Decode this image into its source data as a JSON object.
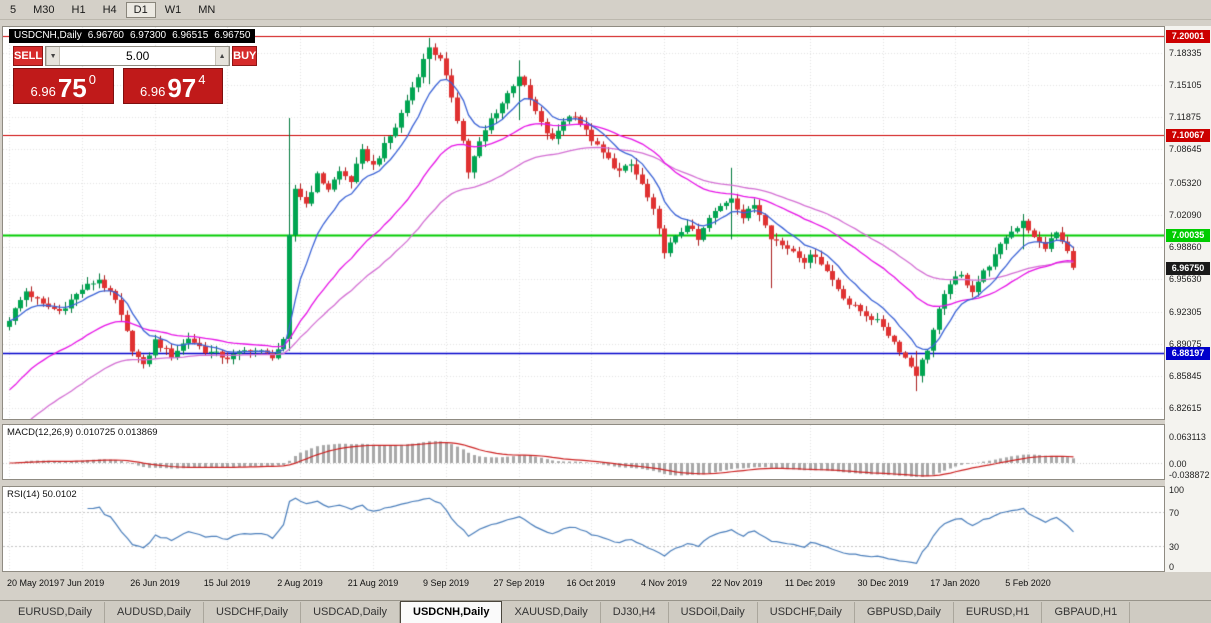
{
  "toolbar": {
    "timeframes": [
      "5",
      "M30",
      "H1",
      "H4",
      "D1",
      "W1",
      "MN"
    ],
    "active": "D1"
  },
  "symbol_header": {
    "symbol": "USDCNH,Daily",
    "open": "6.96760",
    "high": "6.97300",
    "low": "6.96515",
    "close": "6.96750"
  },
  "icons": {
    "up_arrow": "▲",
    "down_arrow": "▼"
  },
  "trade_panel": {
    "sell_label": "SELL",
    "buy_label": "BUY",
    "volume": "5.00",
    "sell_price_main": "6.96",
    "sell_price_pips": "75",
    "sell_price_point": "0",
    "buy_price_main": "6.96",
    "buy_price_pips": "97",
    "buy_price_point": "4"
  },
  "price_axis": {
    "min": 6.8155,
    "max": 7.2095,
    "ticks": [
      "7.18335",
      "7.15105",
      "7.11875",
      "7.08645",
      "7.05320",
      "7.02090",
      "6.98860",
      "6.95630",
      "6.92305",
      "6.89075",
      "6.85845",
      "6.82615"
    ],
    "levels": [
      {
        "name": "resistance-upper",
        "price": 7.20001,
        "label": "7.20001",
        "color": "#cc0000",
        "width": 1.2
      },
      {
        "name": "resistance-mid",
        "price": 7.10067,
        "label": "7.10067",
        "color": "#cc0000",
        "width": 1.2
      },
      {
        "name": "pivot-green",
        "price": 7.00035,
        "label": "7.00035",
        "color": "#00cc00",
        "width": 2
      },
      {
        "name": "support-blue",
        "price": 6.88197,
        "label": "6.88197",
        "color": "#0000cc",
        "width": 1.5
      }
    ],
    "current_price": {
      "price": 6.9675,
      "label": "6.96750",
      "color": "#1a1a1a"
    }
  },
  "indicators": {
    "macd": {
      "label": "MACD(12,26,9) 0.010725 0.013869",
      "axis": [
        "0.063113",
        "0.00",
        "-0.038872"
      ],
      "values": [
        0.010725,
        0.013869
      ]
    },
    "rsi": {
      "label": "RSI(14) 50.0102",
      "axis": [
        "100",
        "70",
        "30",
        "0"
      ],
      "levels": [
        70,
        30
      ],
      "value": 50.0102
    }
  },
  "time_axis": {
    "labels": [
      "20 May 2019",
      "7 Jun 2019",
      "26 Jun 2019",
      "15 Jul 2019",
      "2 Aug 2019",
      "21 Aug 2019",
      "9 Sep 2019",
      "27 Sep 2019",
      "16 Oct 2019",
      "4 Nov 2019",
      "22 Nov 2019",
      "11 Dec 2019",
      "30 Dec 2019",
      "17 Jan 2020",
      "5 Feb 2020"
    ],
    "label_indices": [
      0,
      13,
      26,
      39,
      52,
      65,
      78,
      91,
      104,
      117,
      130,
      143,
      156,
      169,
      182
    ]
  },
  "tabs": {
    "items": [
      "EURUSD,Daily",
      "AUDUSD,Daily",
      "USDCHF,Daily",
      "USDCAD,Daily",
      "USDCNH,Daily",
      "XAUUSD,Daily",
      "DJ30,H4",
      "USDOil,Daily",
      "USDCHF,Daily",
      "GBPUSD,Daily",
      "EURUSD,H1",
      "GBPAUD,H1"
    ],
    "active": "USDCNH,Daily"
  },
  "chart_data": {
    "type": "candlestick",
    "symbol": "USDCNH",
    "timeframe": "Daily",
    "visible_ohlc": {
      "open": 6.9676,
      "high": 6.973,
      "low": 6.96515,
      "close": 6.9675
    },
    "candle_count": 191,
    "close_keypoints": [
      [
        0,
        6.916
      ],
      [
        3,
        6.944
      ],
      [
        6,
        6.93
      ],
      [
        9,
        6.924
      ],
      [
        13,
        6.946
      ],
      [
        16,
        6.956
      ],
      [
        19,
        6.934
      ],
      [
        22,
        6.886
      ],
      [
        24,
        6.868
      ],
      [
        26,
        6.894
      ],
      [
        29,
        6.879
      ],
      [
        32,
        6.897
      ],
      [
        35,
        6.884
      ],
      [
        39,
        6.877
      ],
      [
        43,
        6.886
      ],
      [
        47,
        6.879
      ],
      [
        49,
        6.893
      ],
      [
        50,
        6.998
      ],
      [
        51,
        7.047
      ],
      [
        53,
        7.032
      ],
      [
        55,
        7.06
      ],
      [
        57,
        7.047
      ],
      [
        59,
        7.064
      ],
      [
        61,
        7.055
      ],
      [
        63,
        7.084
      ],
      [
        65,
        7.07
      ],
      [
        67,
        7.09
      ],
      [
        69,
        7.109
      ],
      [
        71,
        7.136
      ],
      [
        73,
        7.162
      ],
      [
        75,
        7.19
      ],
      [
        77,
        7.176
      ],
      [
        79,
        7.14
      ],
      [
        81,
        7.095
      ],
      [
        82,
        7.064
      ],
      [
        84,
        7.093
      ],
      [
        86,
        7.117
      ],
      [
        88,
        7.133
      ],
      [
        90,
        7.152
      ],
      [
        91,
        7.161
      ],
      [
        93,
        7.136
      ],
      [
        95,
        7.112
      ],
      [
        97,
        7.095
      ],
      [
        99,
        7.116
      ],
      [
        101,
        7.122
      ],
      [
        103,
        7.104
      ],
      [
        105,
        7.089
      ],
      [
        107,
        7.076
      ],
      [
        109,
        7.064
      ],
      [
        111,
        7.071
      ],
      [
        113,
        7.051
      ],
      [
        115,
        7.024
      ],
      [
        117,
        6.985
      ],
      [
        119,
        6.997
      ],
      [
        121,
        7.012
      ],
      [
        123,
        6.995
      ],
      [
        125,
        7.017
      ],
      [
        127,
        7.029
      ],
      [
        129,
        7.039
      ],
      [
        131,
        7.018
      ],
      [
        133,
        7.031
      ],
      [
        135,
        7.013
      ],
      [
        136,
        6.999
      ],
      [
        138,
        6.99
      ],
      [
        140,
        6.985
      ],
      [
        142,
        6.975
      ],
      [
        144,
        6.981
      ],
      [
        146,
        6.964
      ],
      [
        148,
        6.947
      ],
      [
        150,
        6.931
      ],
      [
        152,
        6.924
      ],
      [
        154,
        6.917
      ],
      [
        156,
        6.909
      ],
      [
        158,
        6.893
      ],
      [
        160,
        6.877
      ],
      [
        162,
        6.861
      ],
      [
        164,
        6.886
      ],
      [
        166,
        6.924
      ],
      [
        168,
        6.953
      ],
      [
        170,
        6.959
      ],
      [
        172,
        6.945
      ],
      [
        174,
        6.963
      ],
      [
        176,
        6.979
      ],
      [
        178,
        6.999
      ],
      [
        180,
        7.009
      ],
      [
        181,
        7.016
      ],
      [
        183,
        6.997
      ],
      [
        185,
        6.988
      ],
      [
        187,
        7.003
      ],
      [
        189,
        6.983
      ],
      [
        190,
        6.9675
      ]
    ],
    "wick_overrides": [
      [
        50,
        7.118,
        6.884
      ],
      [
        75,
        7.1985,
        7.152
      ],
      [
        91,
        7.176,
        7.116
      ],
      [
        129,
        7.068,
        6.996
      ],
      [
        136,
        7.002,
        6.947
      ],
      [
        162,
        6.884,
        6.8435
      ],
      [
        181,
        7.0215,
        6.986
      ]
    ],
    "moving_averages": [
      {
        "name": "slow",
        "color": "#d36fd3",
        "period": 50,
        "seed": 6.79
      },
      {
        "name": "medium",
        "color": "#e612e6",
        "period": 30,
        "seed": 6.84
      },
      {
        "name": "fast",
        "color": "#3a62d6",
        "period": 9
      }
    ],
    "colors": {
      "up": "#00a551",
      "up_stroke": "#007a3c",
      "down": "#e03131",
      "down_stroke": "#aa1f1f",
      "macd_hist": "#a8a8a8",
      "macd_signal": "#cc2222",
      "rsi_line": "#4a7ebb",
      "grid": "#e2e2e2"
    }
  }
}
